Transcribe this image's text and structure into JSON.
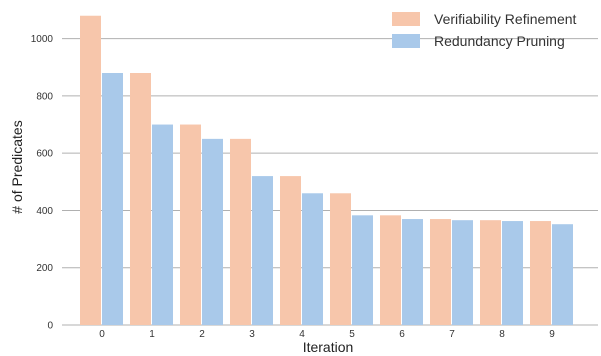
{
  "chart_data": {
    "type": "bar",
    "categories": [
      "0",
      "1",
      "2",
      "3",
      "4",
      "5",
      "6",
      "7",
      "8",
      "9"
    ],
    "series": [
      {
        "name": "Verifiability Refinement",
        "color": "#f7c6ab",
        "values": [
          1080,
          880,
          700,
          650,
          520,
          460,
          383,
          370,
          366,
          363
        ]
      },
      {
        "name": "Redundancy Pruning",
        "color": "#a9c9ea",
        "values": [
          880,
          700,
          650,
          520,
          460,
          383,
          370,
          366,
          363,
          352
        ]
      }
    ],
    "xlabel": "Iteration",
    "ylabel": "# of Predicates",
    "ylim": [
      0,
      1100
    ],
    "yticks": [
      0,
      200,
      400,
      600,
      800,
      1000
    ],
    "grid": "horizontal",
    "legend_position": "top-right"
  }
}
